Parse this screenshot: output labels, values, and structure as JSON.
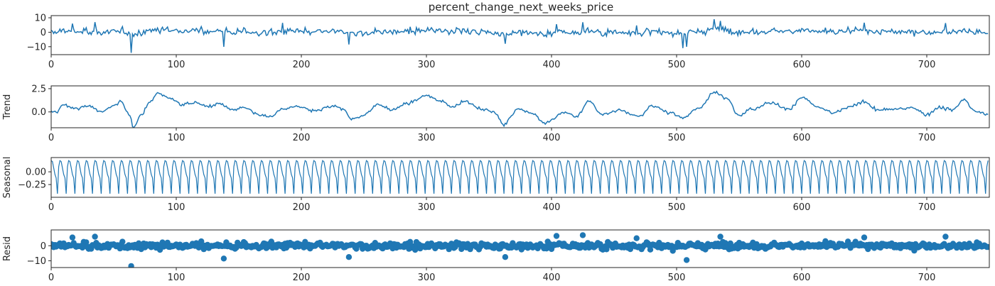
{
  "chart_data": [
    {
      "type": "line",
      "title": "percent_change_next_weeks_price",
      "ylabel": "",
      "xlim": [
        0,
        750
      ],
      "ylim": [
        -15.5,
        11.5
      ],
      "xticks": [
        "0",
        "100",
        "200",
        "300",
        "400",
        "500",
        "600",
        "700"
      ],
      "yticks": [
        "10",
        "0",
        "−10"
      ],
      "color": "#1f77b4",
      "n_points": 750,
      "description": "observed series: noisy weekly percent changes, mostly between -5 and 5, spikes down near x=64 (about -14), x=138 (about -10), x=505 (about -11), up near x=530 (about 9)",
      "anchors": [
        [
          64,
          -14.2
        ],
        [
          138,
          -10.1
        ],
        [
          238,
          -8.5
        ],
        [
          363,
          -8.0
        ],
        [
          505,
          -11.0
        ],
        [
          530,
          9.0
        ],
        [
          35,
          7.0
        ],
        [
          185,
          6.5
        ]
      ]
    },
    {
      "type": "line",
      "title": "",
      "ylabel": "Trend",
      "xlim": [
        0,
        750
      ],
      "ylim": [
        -1.7,
        2.8
      ],
      "xticks": [
        "0",
        "100",
        "200",
        "300",
        "400",
        "500",
        "600",
        "700"
      ],
      "yticks": [
        "2.5",
        "0.0"
      ],
      "color": "#1f77b4",
      "trend_knots_x": [
        4,
        10,
        20,
        30,
        40,
        50,
        56,
        62,
        66,
        72,
        80,
        85,
        95,
        105,
        115,
        125,
        135,
        145,
        155,
        165,
        175,
        185,
        195,
        210,
        225,
        235,
        240,
        248,
        262,
        272,
        285,
        300,
        312,
        320,
        330,
        345,
        355,
        362,
        367,
        372,
        385,
        395,
        400,
        410,
        420,
        430,
        440,
        455,
        470,
        480,
        495,
        505,
        518,
        530,
        540,
        550,
        560,
        575,
        590,
        600,
        613,
        625,
        640,
        650,
        660,
        675,
        690,
        700,
        710,
        720,
        730,
        738,
        748
      ],
      "trend_knots_y": [
        0.0,
        0.8,
        0.3,
        0.7,
        0.0,
        0.6,
        1.1,
        -0.2,
        -1.6,
        -0.3,
        1.2,
        2.0,
        1.5,
        0.8,
        1.0,
        0.6,
        0.9,
        0.2,
        0.5,
        -0.3,
        -0.5,
        0.3,
        0.6,
        0.1,
        0.6,
        0.2,
        -0.8,
        -0.5,
        0.8,
        0.2,
        0.9,
        1.7,
        1.2,
        0.6,
        1.1,
        0.3,
        -0.1,
        -1.4,
        -0.6,
        0.3,
        -0.2,
        -1.3,
        -0.8,
        0.0,
        -0.5,
        1.2,
        -0.3,
        0.2,
        -0.5,
        0.6,
        -0.1,
        -0.6,
        0.4,
        2.1,
        1.5,
        -0.3,
        0.3,
        1.0,
        0.3,
        1.6,
        0.5,
        -0.1,
        0.6,
        1.2,
        0.2,
        0.3,
        0.4,
        -0.3,
        0.5,
        0.2,
        1.3,
        0.1,
        -0.3
      ]
    },
    {
      "type": "line",
      "title": "",
      "ylabel": "Seasonal",
      "xlim": [
        0,
        750
      ],
      "ylim": [
        -0.5,
        0.28
      ],
      "xticks": [
        "0",
        "100",
        "200",
        "300",
        "400",
        "500",
        "600",
        "700"
      ],
      "yticks": [
        "0.00",
        "−0.25"
      ],
      "color": "#1f77b4",
      "period": 7,
      "pattern": [
        0.22,
        0.2,
        0.08,
        -0.05,
        -0.12,
        -0.43,
        0.1
      ]
    },
    {
      "type": "scatter",
      "title": "",
      "ylabel": "Resid",
      "xlim": [
        0,
        750
      ],
      "ylim": [
        -14.5,
        10.5
      ],
      "xticks": [
        "0",
        "100",
        "200",
        "300",
        "400",
        "500",
        "600",
        "700"
      ],
      "yticks": [
        "0",
        "−10"
      ],
      "color": "#1f77b4",
      "baseline": 0,
      "outliers": [
        [
          64,
          -13.5
        ],
        [
          138,
          -8.5
        ],
        [
          238,
          -7.5
        ],
        [
          363,
          -7.5
        ],
        [
          508,
          -9.5
        ],
        [
          35,
          6.0
        ],
        [
          17,
          5.5
        ],
        [
          404,
          6.5
        ],
        [
          425,
          7.0
        ],
        [
          535,
          6.0
        ],
        [
          650,
          5.5
        ],
        [
          715,
          6.0
        ],
        [
          468,
          5.0
        ]
      ]
    }
  ]
}
